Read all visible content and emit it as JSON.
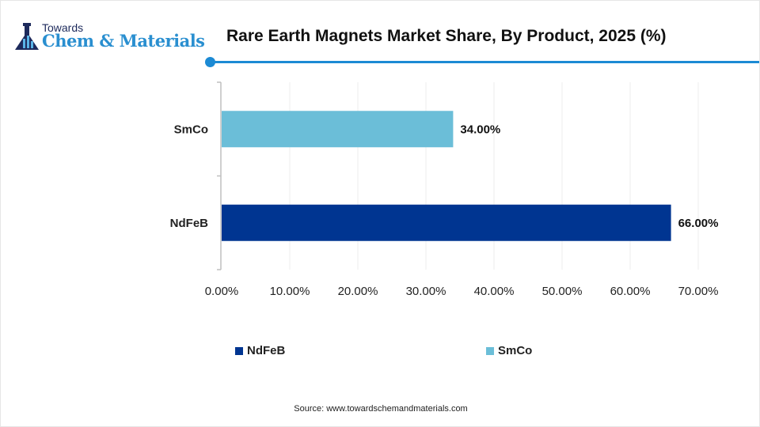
{
  "logo": {
    "top_text": "Towards",
    "main_text": "Chem & Materials"
  },
  "chart_data": {
    "type": "bar",
    "orientation": "horizontal",
    "title": "Rare Earth Magnets Market Share, By Product, 2025 (%)",
    "categories": [
      "SmCo",
      "NdFeB"
    ],
    "values": [
      34.0,
      66.0
    ],
    "data_labels": [
      "34.00%",
      "66.00%"
    ],
    "colors": [
      "#6bbed8",
      "#003591"
    ],
    "xlim": [
      0,
      70
    ],
    "xticks": [
      0,
      10,
      20,
      30,
      40,
      50,
      60,
      70
    ],
    "xtick_labels": [
      "0.00%",
      "10.00%",
      "20.00%",
      "30.00%",
      "40.00%",
      "50.00%",
      "60.00%",
      "70.00%"
    ],
    "grid": "vertical",
    "legend": {
      "placement": "bottom",
      "entries": [
        {
          "label": "NdFeB",
          "color": "#003591"
        },
        {
          "label": "SmCo",
          "color": "#6bbed8"
        }
      ]
    }
  },
  "accent_color": "#1c8ad4",
  "source": "Source: www.towardschemandmaterials.com"
}
